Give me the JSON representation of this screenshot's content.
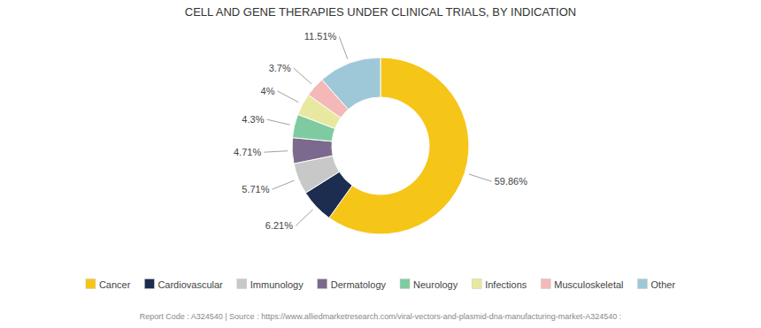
{
  "chart_data": {
    "type": "donut",
    "title": "CELL AND GENE THERAPIES UNDER CLINICAL TRIALS, BY INDICATION",
    "categories": [
      "Cancer",
      "Cardiovascular",
      "Immunology",
      "Dermatology",
      "Neurology",
      "Infections",
      "Musculoskeletal",
      "Other"
    ],
    "values": [
      59.86,
      6.21,
      5.71,
      4.71,
      4.3,
      4.0,
      3.7,
      11.51
    ],
    "value_labels": [
      "59.86%",
      "6.21%",
      "5.71%",
      "4.71%",
      "4.3%",
      "4%",
      "3.7%",
      "11.51%"
    ],
    "colors": [
      "#F5C518",
      "#1C2D4F",
      "#C8C8C8",
      "#7B6A8D",
      "#7ECBA1",
      "#E8E8A0",
      "#F4B8B8",
      "#9EC8D8"
    ],
    "data_labels": true,
    "legend": "bottom",
    "annotations": [
      "Report Code : A324540  |  Source : https://www.alliedmarketresearch.com/viral-vectors-and-plasmid-dna-manufacturing-market-A324540 :"
    ]
  }
}
